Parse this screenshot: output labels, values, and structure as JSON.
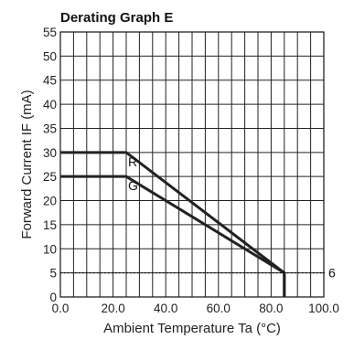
{
  "chart_data": {
    "type": "line",
    "title": "Derating Graph E",
    "xlabel": "Ambient Temperature Ta (°C)",
    "ylabel": "Forward Current IF (mA)",
    "xlim": [
      0,
      100
    ],
    "ylim": [
      0,
      55
    ],
    "x_ticks": [
      "0.0",
      "20.0",
      "40.0",
      "60.0",
      "80.0",
      "100.0"
    ],
    "y_ticks": [
      "0",
      "5",
      "10",
      "15",
      "20",
      "25",
      "30",
      "35",
      "40",
      "45",
      "50",
      "55"
    ],
    "grid": true,
    "series": [
      {
        "name": "R",
        "x": [
          0,
          25,
          85,
          85
        ],
        "y": [
          30,
          30,
          5,
          0
        ]
      },
      {
        "name": "G",
        "x": [
          0,
          25,
          85,
          85
        ],
        "y": [
          25,
          25,
          5,
          0
        ]
      }
    ],
    "reference_line": {
      "y": 5,
      "label": "6",
      "style": "dotted"
    }
  }
}
